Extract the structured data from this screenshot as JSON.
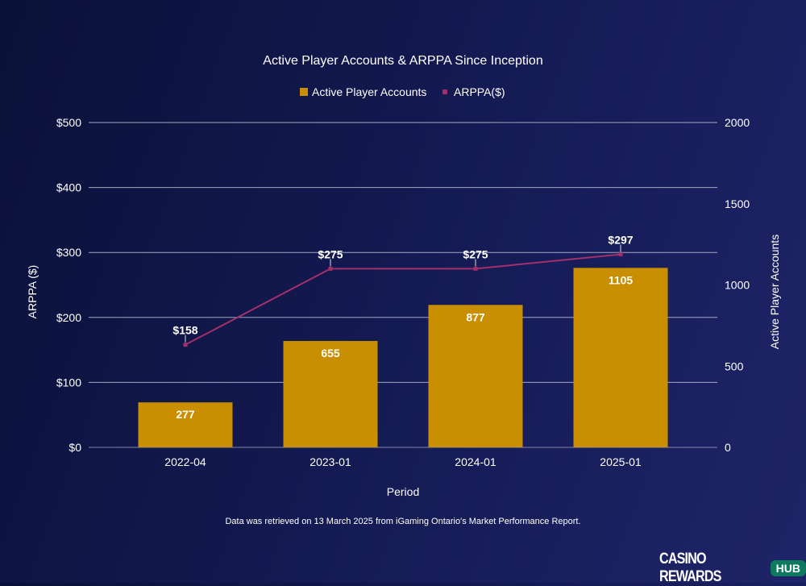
{
  "chart_data": {
    "type": "bar+line",
    "title": "Active Player Accounts & ARPPA Since Inception",
    "xlabel": "Period",
    "ylabel_left": "ARPPA ($)",
    "ylabel_right": "Active Player Accounts",
    "categories": [
      "2022-04",
      "2023-01",
      "2024-01",
      "2025-01"
    ],
    "series": [
      {
        "name": "Active Player Accounts",
        "type": "bar",
        "axis": "right",
        "values": [
          277,
          655,
          877,
          1105
        ],
        "labels": [
          "277",
          "655",
          "877",
          "1105"
        ],
        "color": "#c98f00"
      },
      {
        "name": "ARPPA($)",
        "type": "line",
        "axis": "left",
        "values": [
          158,
          275,
          275,
          297
        ],
        "labels": [
          "$158",
          "$275",
          "$275",
          "$297"
        ],
        "color": "#a3306c"
      }
    ],
    "left_ylim": [
      0,
      500
    ],
    "left_ticks": [
      "$0",
      "$100",
      "$200",
      "$300",
      "$400",
      "$500"
    ],
    "right_ylim": [
      0,
      2000
    ],
    "right_ticks": [
      "0",
      "500",
      "1000",
      "1500",
      "2000"
    ],
    "grid": true,
    "legend_placement": "top-center"
  },
  "footnote": "Data was retrieved on 13 March 2025 from iGaming Ontario's Market Performance Report.",
  "logo": {
    "word": "CASINO REWARDS",
    "badge": "HUB"
  }
}
